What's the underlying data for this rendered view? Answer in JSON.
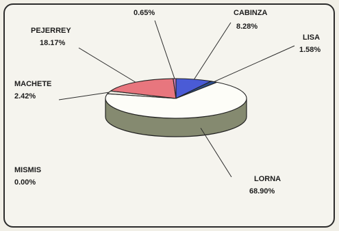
{
  "chart_data": {
    "type": "pie",
    "style": "3d",
    "title": "",
    "slices": [
      {
        "label": "CABINZA",
        "value": 8.28,
        "display": "8.28%",
        "color": "#4a5bd6"
      },
      {
        "label": "LISA",
        "value": 1.58,
        "display": "1.58%",
        "color": "#2f4f8c"
      },
      {
        "label": "LORNA",
        "value": 68.9,
        "display": "68.90%",
        "color": "#fdfdf8"
      },
      {
        "label": "MISMIS",
        "value": 0.0,
        "display": "0.00%",
        "color": "#8a8a6a"
      },
      {
        "label": "MACHETE",
        "value": 2.42,
        "display": "2.42%",
        "color": "#e9e6dc"
      },
      {
        "label": "PEJERREY",
        "value": 18.17,
        "display": "18.17%",
        "color": "#e8767e"
      },
      {
        "label": "",
        "value": 0.65,
        "display": "0.65%",
        "color": "#c77ab3"
      }
    ],
    "side_color": "#858a70",
    "edge_color": "#222222"
  }
}
